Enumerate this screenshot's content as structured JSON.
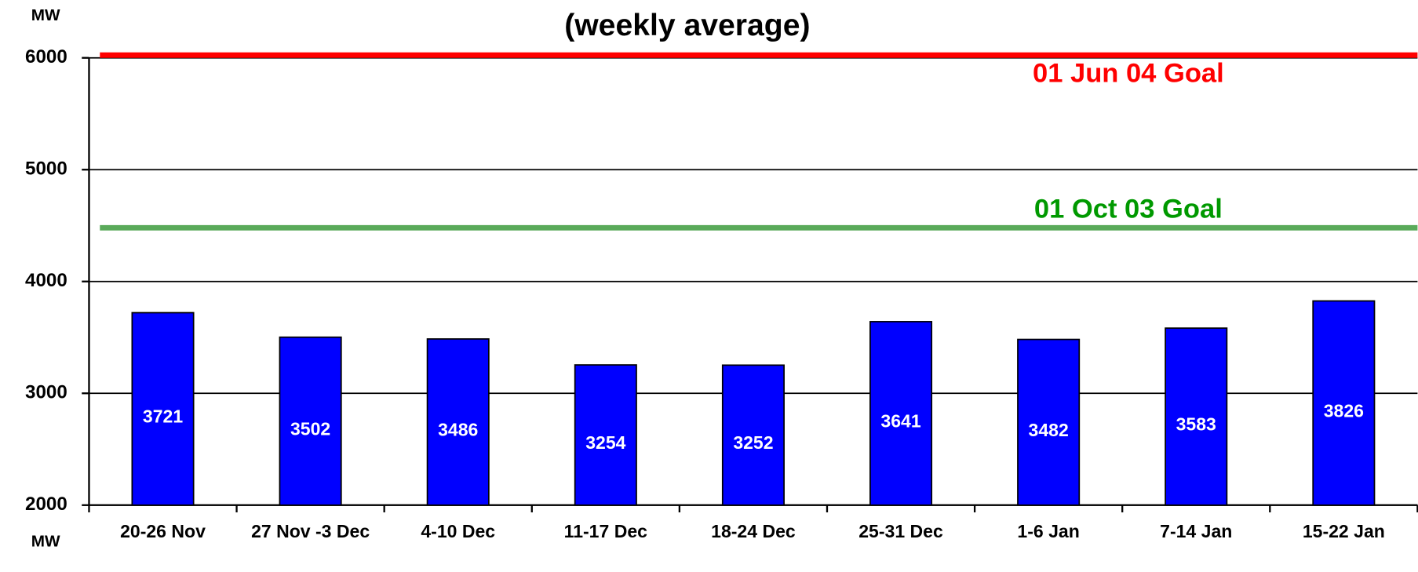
{
  "chart_data": {
    "type": "bar",
    "subtitle": "(weekly average)",
    "y_unit_label": "MW",
    "x_unit_label": "MW",
    "categories": [
      "20-26 Nov",
      "27 Nov -3 Dec",
      "4-10 Dec",
      "11-17 Dec",
      "18-24 Dec",
      "25-31 Dec",
      "1-6 Jan",
      "7-14 Jan",
      "15-22 Jan"
    ],
    "values": [
      3721,
      3502,
      3486,
      3254,
      3252,
      3641,
      3482,
      3583,
      3826
    ],
    "color": "#0000ff",
    "ylim": [
      2000,
      6000
    ],
    "yticks": [
      2000,
      3000,
      4000,
      5000,
      6000
    ],
    "grid": true,
    "reference_lines": [
      {
        "label": "01 Jun 04 Goal",
        "value": 6000,
        "color": "#ff0000"
      },
      {
        "label": "01 Oct 03 Goal",
        "value": 4480,
        "color": "#5aaa5a",
        "label_color": "#009900"
      }
    ]
  }
}
